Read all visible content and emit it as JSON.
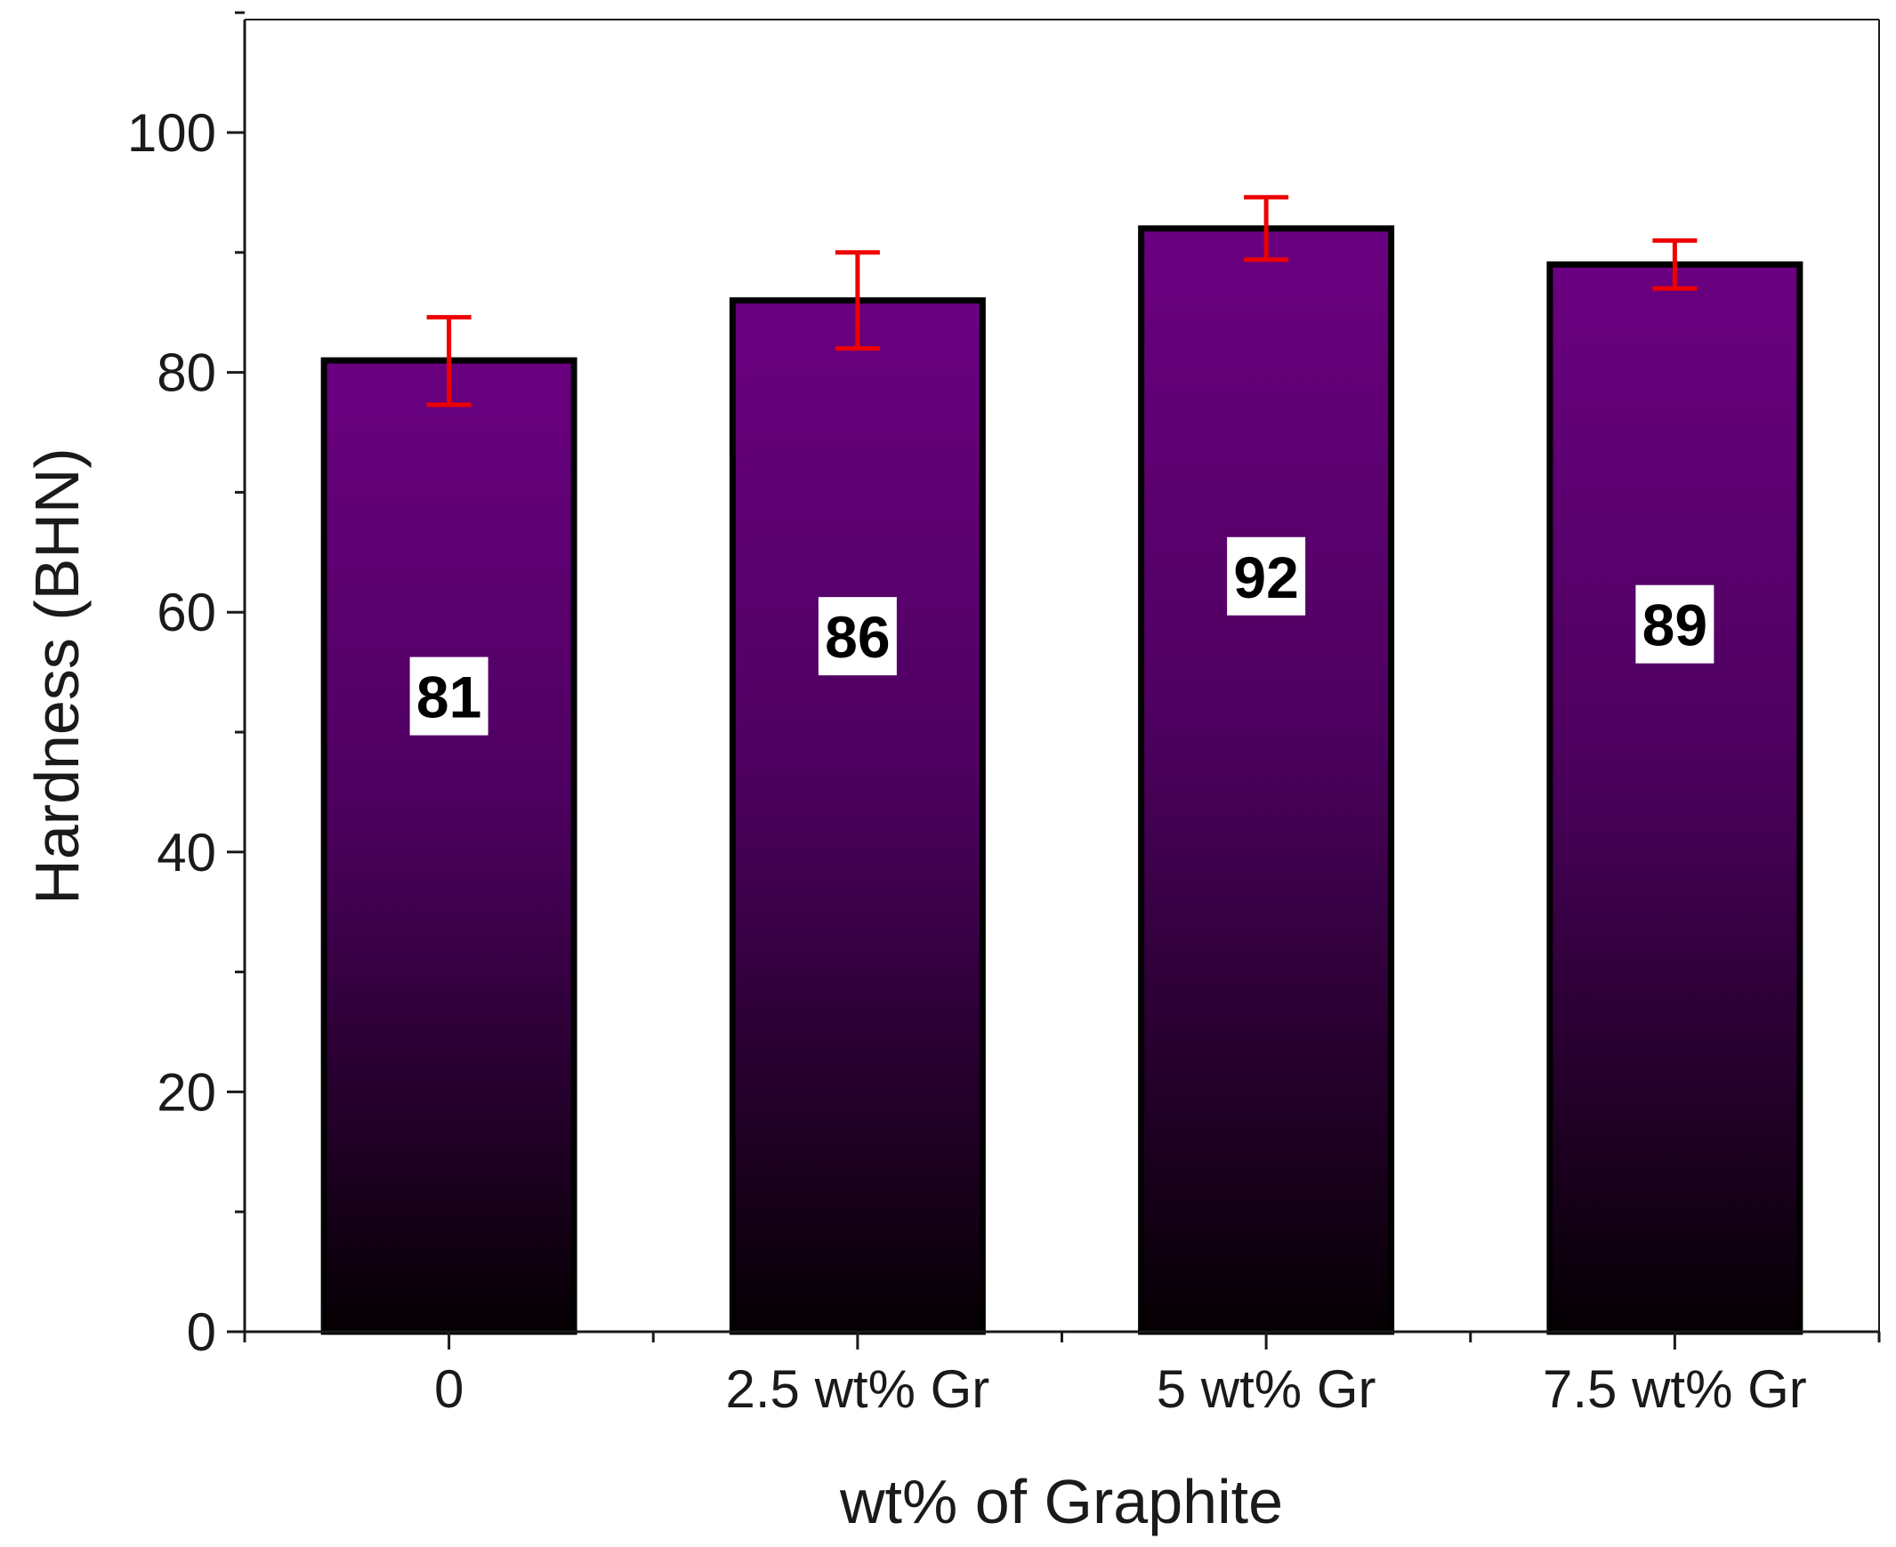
{
  "chart_data": {
    "type": "bar",
    "title": "",
    "xlabel": "wt% of Graphite",
    "ylabel": "Hardness (BHN)",
    "categories": [
      "0",
      "2.5 wt% Gr",
      "5 wt% Gr",
      "7.5 wt% Gr"
    ],
    "values": [
      81,
      86,
      92,
      89
    ],
    "data_labels": [
      "81",
      "86",
      "92",
      "89"
    ],
    "error_lower": [
      77.3,
      82.0,
      89.4,
      87.0
    ],
    "error_upper": [
      84.6,
      90.0,
      94.6,
      91.0
    ],
    "ylim": [
      0,
      110
    ],
    "yticks": [
      0,
      20,
      40,
      60,
      80,
      100
    ],
    "ytick_labels": [
      "0",
      "20",
      "40",
      "60",
      "80",
      "100"
    ],
    "label_values": [
      53,
      58,
      63,
      59
    ],
    "grid": false,
    "colors": {
      "bar_top": "#6a0080",
      "bar_bottom": "#050003",
      "bar_edge": "#000000",
      "error_bar": "#ee0000",
      "axis": "#1a1a1a"
    }
  }
}
